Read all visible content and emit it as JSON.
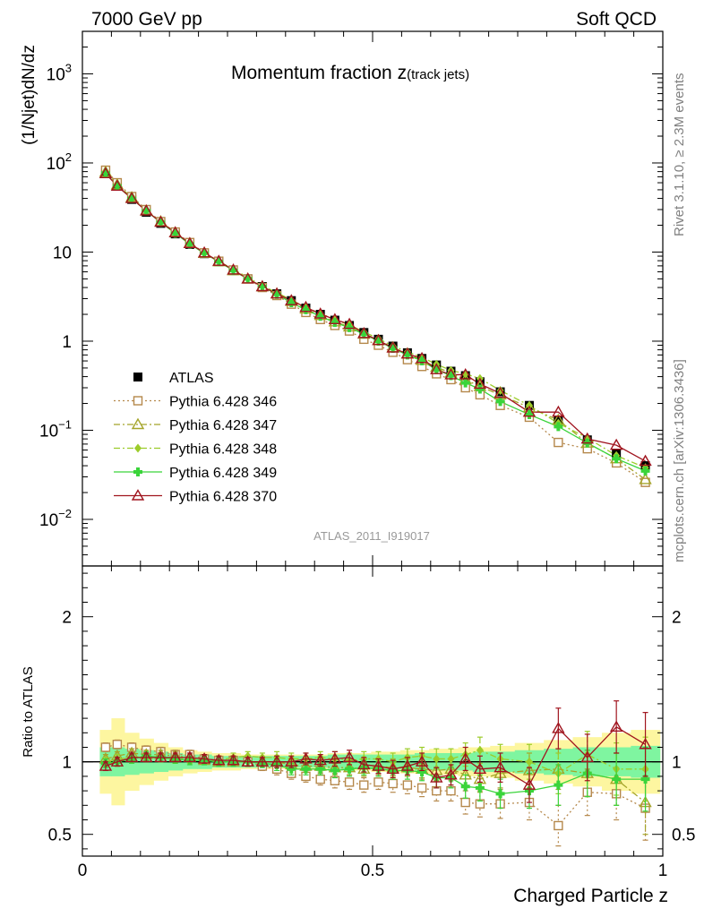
{
  "header": {
    "energy_label": "7000 GeV pp",
    "process_label": "Soft QCD",
    "plot_title_main": "Momentum fraction z",
    "plot_title_sub": "(track jets)",
    "analysis_id": "ATLAS_2011_I919017",
    "rivet_label": "Rivet 3.1.10, ≥ 2.3M events",
    "mcplots_label": "mcplots.cern.ch [arXiv:1306.3436]"
  },
  "chart_data": [
    {
      "type": "scatter",
      "panel": "main",
      "ylabel": "(1/Njet)dN/dz",
      "yscale": "log",
      "ylim": [
        0.003,
        3000
      ],
      "xlim": [
        0,
        1
      ],
      "yticks": [
        {
          "value": 0.01,
          "base": "10",
          "exp": "−2"
        },
        {
          "value": 0.1,
          "base": "10",
          "exp": "−1"
        },
        {
          "value": 1,
          "base": "1",
          "exp": ""
        },
        {
          "value": 10,
          "base": "10",
          "exp": ""
        },
        {
          "value": 100,
          "base": "10",
          "exp": "2"
        },
        {
          "value": 1000,
          "base": "10",
          "exp": "3"
        }
      ],
      "legend_position": "left",
      "x": [
        0.04,
        0.06,
        0.085,
        0.11,
        0.135,
        0.16,
        0.185,
        0.21,
        0.235,
        0.26,
        0.285,
        0.31,
        0.335,
        0.36,
        0.385,
        0.41,
        0.435,
        0.46,
        0.485,
        0.51,
        0.535,
        0.56,
        0.585,
        0.61,
        0.635,
        0.66,
        0.685,
        0.72,
        0.77,
        0.82,
        0.87,
        0.92,
        0.97
      ],
      "series": [
        {
          "name": "ATLAS",
          "color": "#000000",
          "marker": "square-filled",
          "line": "none",
          "values": [
            78,
            55,
            39,
            28,
            21,
            16,
            12.2,
            9.6,
            7.8,
            6.2,
            5.0,
            4.1,
            3.4,
            2.85,
            2.35,
            2.0,
            1.72,
            1.5,
            1.25,
            1.05,
            0.88,
            0.74,
            0.64,
            0.54,
            0.46,
            0.41,
            0.35,
            0.27,
            0.19,
            0.13,
            0.078,
            0.055,
            0.04
          ]
        },
        {
          "name": "Pythia 6.428 346",
          "color": "#b5884b",
          "marker": "square-open",
          "line": "dotted",
          "values": [
            83,
            60,
            42,
            30,
            22,
            16.8,
            12.8,
            9.8,
            7.9,
            6.3,
            5.0,
            4.0,
            3.25,
            2.6,
            2.1,
            1.75,
            1.5,
            1.3,
            1.05,
            0.9,
            0.75,
            0.62,
            0.52,
            0.43,
            0.37,
            0.3,
            0.25,
            0.19,
            0.14,
            0.073,
            0.062,
            0.043,
            0.026
          ]
        },
        {
          "name": "Pythia 6.428 347",
          "color": "#a5a52a",
          "marker": "triangle-open",
          "line": "dashdot",
          "values": [
            79,
            57,
            41,
            29,
            22,
            16.5,
            12.5,
            9.7,
            7.8,
            6.2,
            5.0,
            4.1,
            3.4,
            2.8,
            2.3,
            1.95,
            1.65,
            1.45,
            1.2,
            1.02,
            0.85,
            0.72,
            0.61,
            0.51,
            0.44,
            0.37,
            0.31,
            0.25,
            0.18,
            0.13,
            0.072,
            0.048,
            0.028
          ]
        },
        {
          "name": "Pythia 6.428 348",
          "color": "#9ccc2a",
          "marker": "diamond",
          "line": "dashdot",
          "values": [
            78,
            56,
            40,
            29,
            21.5,
            16.3,
            12.4,
            9.7,
            7.9,
            6.4,
            5.2,
            4.2,
            3.5,
            2.9,
            2.4,
            2.05,
            1.75,
            1.52,
            1.27,
            1.07,
            0.88,
            0.76,
            0.66,
            0.55,
            0.47,
            0.43,
            0.38,
            0.28,
            0.19,
            0.12,
            0.082,
            0.052,
            0.038
          ]
        },
        {
          "name": "Pythia 6.428 349",
          "color": "#3ad43a",
          "marker": "cross",
          "line": "solid",
          "values": [
            77,
            55,
            40,
            29,
            21.5,
            16.2,
            12.3,
            9.7,
            7.8,
            6.2,
            5.0,
            4.1,
            3.35,
            2.7,
            2.25,
            1.9,
            1.62,
            1.42,
            1.2,
            1.0,
            0.83,
            0.7,
            0.6,
            0.48,
            0.41,
            0.34,
            0.29,
            0.21,
            0.15,
            0.11,
            0.072,
            0.048,
            0.035
          ]
        },
        {
          "name": "Pythia 6.428 370",
          "color": "#a0141e",
          "marker": "triangle-open",
          "line": "solid",
          "values": [
            76,
            55,
            40,
            29,
            21.7,
            16.5,
            12.5,
            9.8,
            7.9,
            6.3,
            5.0,
            4.1,
            3.4,
            2.85,
            2.4,
            2.02,
            1.75,
            1.55,
            1.22,
            1.02,
            0.84,
            0.72,
            0.64,
            0.48,
            0.42,
            0.42,
            0.33,
            0.26,
            0.16,
            0.16,
            0.08,
            0.068,
            0.045
          ]
        }
      ]
    },
    {
      "type": "scatter",
      "panel": "ratio",
      "ylabel": "Ratio to ATLAS",
      "xlabel": "Charged Particle z",
      "ylim": [
        0.35,
        2.35
      ],
      "xlim": [
        0,
        1
      ],
      "yticks": [
        0.5,
        1,
        2
      ],
      "xticks": [
        {
          "value": 0,
          "label": "0"
        },
        {
          "value": 0.5,
          "label": "0.5"
        },
        {
          "value": 1,
          "label": "1"
        }
      ],
      "reference_line": 1,
      "bands": {
        "stat_color": "#7ff5a0",
        "total_color": "#fdf6a0",
        "stat_half_width": [
          0.1,
          0.1,
          0.09,
          0.08,
          0.07,
          0.06,
          0.05,
          0.05,
          0.04,
          0.04,
          0.04,
          0.04,
          0.04,
          0.04,
          0.04,
          0.04,
          0.05,
          0.05,
          0.05,
          0.05,
          0.05,
          0.05,
          0.06,
          0.06,
          0.06,
          0.06,
          0.07,
          0.07,
          0.08,
          0.09,
          0.1,
          0.1,
          0.11
        ],
        "total_half_width": [
          0.22,
          0.3,
          0.2,
          0.16,
          0.13,
          0.1,
          0.08,
          0.07,
          0.06,
          0.06,
          0.05,
          0.05,
          0.05,
          0.05,
          0.05,
          0.05,
          0.06,
          0.06,
          0.06,
          0.07,
          0.07,
          0.08,
          0.08,
          0.09,
          0.09,
          0.1,
          0.1,
          0.11,
          0.13,
          0.15,
          0.17,
          0.2,
          0.22
        ]
      },
      "series": [
        {
          "name": "Pythia 6.428 346",
          "values": [
            1.1,
            1.12,
            1.1,
            1.08,
            1.07,
            1.05,
            1.05,
            1.02,
            1.01,
            1.01,
            1.0,
            0.97,
            0.95,
            0.92,
            0.9,
            0.88,
            0.87,
            0.86,
            0.84,
            0.86,
            0.85,
            0.84,
            0.82,
            0.8,
            0.8,
            0.72,
            0.71,
            0.71,
            0.72,
            0.56,
            0.79,
            0.78,
            0.68
          ],
          "err": [
            0.03,
            0.03,
            0.03,
            0.03,
            0.03,
            0.03,
            0.03,
            0.03,
            0.03,
            0.03,
            0.03,
            0.03,
            0.04,
            0.04,
            0.04,
            0.04,
            0.05,
            0.05,
            0.05,
            0.05,
            0.06,
            0.06,
            0.06,
            0.07,
            0.07,
            0.08,
            0.09,
            0.1,
            0.12,
            0.14,
            0.16,
            0.18,
            0.22
          ]
        },
        {
          "name": "Pythia 6.428 347",
          "values": [
            1.02,
            1.04,
            1.06,
            1.05,
            1.05,
            1.04,
            1.03,
            1.01,
            1.0,
            1.0,
            1.0,
            1.0,
            1.0,
            0.98,
            0.97,
            0.97,
            0.96,
            0.96,
            0.95,
            0.97,
            0.96,
            0.96,
            0.95,
            0.94,
            0.95,
            0.91,
            0.88,
            0.92,
            0.94,
            0.95,
            0.92,
            0.88,
            0.72
          ],
          "err": [
            0.03,
            0.03,
            0.03,
            0.03,
            0.03,
            0.03,
            0.03,
            0.03,
            0.03,
            0.03,
            0.03,
            0.03,
            0.04,
            0.04,
            0.04,
            0.04,
            0.05,
            0.05,
            0.05,
            0.05,
            0.06,
            0.06,
            0.06,
            0.07,
            0.07,
            0.08,
            0.09,
            0.1,
            0.12,
            0.14,
            0.16,
            0.18,
            0.22
          ]
        },
        {
          "name": "Pythia 6.428 348",
          "values": [
            1.0,
            1.02,
            1.03,
            1.04,
            1.03,
            1.02,
            1.02,
            1.01,
            1.01,
            1.03,
            1.04,
            1.03,
            1.03,
            1.02,
            1.02,
            1.03,
            1.02,
            1.01,
            1.02,
            1.02,
            1.0,
            1.03,
            1.04,
            1.02,
            1.02,
            1.05,
            1.08,
            1.02,
            1.0,
            0.92,
            1.05,
            0.95,
            0.95
          ],
          "err": [
            0.03,
            0.03,
            0.03,
            0.03,
            0.03,
            0.03,
            0.03,
            0.03,
            0.03,
            0.03,
            0.03,
            0.03,
            0.04,
            0.04,
            0.04,
            0.04,
            0.05,
            0.05,
            0.05,
            0.05,
            0.06,
            0.06,
            0.06,
            0.07,
            0.07,
            0.08,
            0.09,
            0.1,
            0.12,
            0.14,
            0.16,
            0.18,
            0.22
          ]
        },
        {
          "name": "Pythia 6.428 349",
          "values": [
            0.99,
            1.0,
            1.02,
            1.04,
            1.03,
            1.02,
            1.01,
            1.01,
            1.0,
            1.0,
            1.0,
            0.99,
            0.98,
            0.95,
            0.95,
            0.95,
            0.94,
            0.95,
            0.96,
            0.95,
            0.94,
            0.94,
            0.93,
            0.89,
            0.89,
            0.83,
            0.82,
            0.78,
            0.8,
            0.84,
            0.92,
            0.88,
            0.88
          ],
          "err": [
            0.03,
            0.03,
            0.03,
            0.03,
            0.03,
            0.03,
            0.03,
            0.03,
            0.03,
            0.03,
            0.03,
            0.03,
            0.04,
            0.04,
            0.04,
            0.04,
            0.05,
            0.05,
            0.05,
            0.05,
            0.06,
            0.06,
            0.06,
            0.07,
            0.07,
            0.08,
            0.09,
            0.1,
            0.12,
            0.14,
            0.16,
            0.18,
            0.22
          ]
        },
        {
          "name": "Pythia 6.428 370",
          "values": [
            0.97,
            1.0,
            1.03,
            1.03,
            1.03,
            1.03,
            1.03,
            1.02,
            1.01,
            1.01,
            1.0,
            1.0,
            1.0,
            1.0,
            1.02,
            1.01,
            1.02,
            1.03,
            0.98,
            0.97,
            0.95,
            0.97,
            1.0,
            0.89,
            0.91,
            1.02,
            0.95,
            0.96,
            0.84,
            1.23,
            1.03,
            1.24,
            1.12
          ],
          "err": [
            0.03,
            0.03,
            0.03,
            0.03,
            0.03,
            0.03,
            0.03,
            0.03,
            0.03,
            0.03,
            0.03,
            0.03,
            0.04,
            0.04,
            0.04,
            0.04,
            0.05,
            0.05,
            0.05,
            0.05,
            0.06,
            0.06,
            0.06,
            0.07,
            0.07,
            0.08,
            0.09,
            0.1,
            0.12,
            0.14,
            0.16,
            0.18,
            0.22
          ]
        }
      ]
    }
  ]
}
